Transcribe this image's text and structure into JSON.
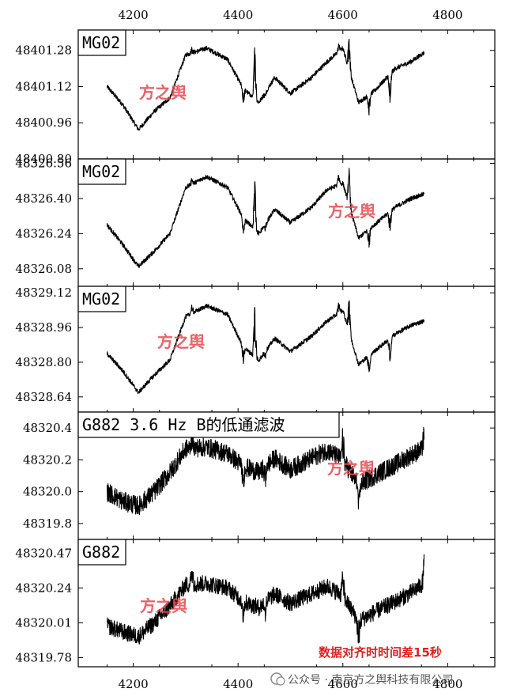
{
  "chart_data": {
    "type": "line",
    "x_ticks": [
      4200,
      4400,
      4600,
      4800
    ],
    "xlim": [
      4095,
      4890
    ],
    "panels": [
      {
        "label": "MG02",
        "ylim": [
          48400.8,
          48401.37
        ],
        "y_ticks": [
          "48401.28",
          "48401.12",
          "48400.96",
          "48400.80"
        ],
        "noise": 0.01,
        "curve": [
          [
            4150,
            48401.12
          ],
          [
            4180,
            48401.04
          ],
          [
            4210,
            48400.93
          ],
          [
            4240,
            48401.01
          ],
          [
            4270,
            48401.07
          ],
          [
            4300,
            48401.26
          ],
          [
            4340,
            48401.29
          ],
          [
            4380,
            48401.24
          ],
          [
            4410,
            48401.11
          ],
          [
            4440,
            48401.05
          ],
          [
            4470,
            48401.16
          ],
          [
            4500,
            48401.09
          ],
          [
            4540,
            48401.16
          ],
          [
            4570,
            48401.23
          ],
          [
            4600,
            48401.29
          ],
          [
            4630,
            48401.05
          ],
          [
            4660,
            48401.1
          ],
          [
            4700,
            48401.2
          ],
          [
            4730,
            48401.23
          ],
          [
            4755,
            48401.27
          ]
        ],
        "spikes": [
          [
            4312,
            48401.29
          ],
          [
            4410,
            48401.05
          ],
          [
            4432,
            48401.3
          ],
          [
            4452,
            48401.08
          ],
          [
            4592,
            48401.3
          ],
          [
            4612,
            48401.34
          ],
          [
            4650,
            48401.0
          ],
          [
            4690,
            48401.05
          ]
        ]
      },
      {
        "label": "MG02",
        "ylim": [
          48326.0,
          48326.58
        ],
        "y_ticks": [
          "48326.56",
          "48326.40",
          "48326.24",
          "48326.08"
        ],
        "noise": 0.01,
        "curve": [
          [
            4150,
            48326.28
          ],
          [
            4180,
            48326.19
          ],
          [
            4210,
            48326.09
          ],
          [
            4240,
            48326.16
          ],
          [
            4270,
            48326.24
          ],
          [
            4300,
            48326.45
          ],
          [
            4340,
            48326.5
          ],
          [
            4380,
            48326.45
          ],
          [
            4410,
            48326.31
          ],
          [
            4440,
            48326.24
          ],
          [
            4470,
            48326.35
          ],
          [
            4500,
            48326.29
          ],
          [
            4540,
            48326.36
          ],
          [
            4570,
            48326.44
          ],
          [
            4600,
            48326.47
          ],
          [
            4630,
            48326.22
          ],
          [
            4660,
            48326.28
          ],
          [
            4700,
            48326.36
          ],
          [
            4730,
            48326.4
          ],
          [
            4755,
            48326.42
          ]
        ],
        "spikes": [
          [
            4312,
            48326.49
          ],
          [
            4410,
            48326.24
          ],
          [
            4432,
            48326.49
          ],
          [
            4452,
            48326.26
          ],
          [
            4592,
            48326.51
          ],
          [
            4612,
            48326.53
          ],
          [
            4650,
            48326.18
          ],
          [
            4690,
            48326.24
          ]
        ]
      },
      {
        "label": "MG02",
        "ylim": [
          48328.57,
          48329.15
        ],
        "y_ticks": [
          "48329.12",
          "48328.96",
          "48328.80",
          "48328.64"
        ],
        "noise": 0.01,
        "curve": [
          [
            4150,
            48328.84
          ],
          [
            4180,
            48328.76
          ],
          [
            4210,
            48328.66
          ],
          [
            4240,
            48328.74
          ],
          [
            4270,
            48328.81
          ],
          [
            4300,
            48329.01
          ],
          [
            4340,
            48329.06
          ],
          [
            4380,
            48329.02
          ],
          [
            4410,
            48328.87
          ],
          [
            4440,
            48328.81
          ],
          [
            4470,
            48328.91
          ],
          [
            4500,
            48328.85
          ],
          [
            4540,
            48328.92
          ],
          [
            4570,
            48328.99
          ],
          [
            4600,
            48329.04
          ],
          [
            4630,
            48328.79
          ],
          [
            4660,
            48328.85
          ],
          [
            4700,
            48328.93
          ],
          [
            4730,
            48328.97
          ],
          [
            4755,
            48328.99
          ]
        ],
        "spikes": [
          [
            4312,
            48329.06
          ],
          [
            4410,
            48328.8
          ],
          [
            4432,
            48329.06
          ],
          [
            4452,
            48328.82
          ],
          [
            4592,
            48329.07
          ],
          [
            4612,
            48329.1
          ],
          [
            4650,
            48328.75
          ],
          [
            4690,
            48328.8
          ]
        ]
      },
      {
        "label": "G882 3.6 Hz B的低通滤波",
        "ylim": [
          48319.7,
          48320.5
        ],
        "y_ticks": [
          "48320.4",
          "48320.2",
          "48320.0",
          "48319.8"
        ],
        "noise": 0.06,
        "curve": [
          [
            4150,
            48320.0
          ],
          [
            4180,
            48319.94
          ],
          [
            4210,
            48319.91
          ],
          [
            4240,
            48320.0
          ],
          [
            4270,
            48320.12
          ],
          [
            4300,
            48320.27
          ],
          [
            4340,
            48320.28
          ],
          [
            4380,
            48320.24
          ],
          [
            4410,
            48320.16
          ],
          [
            4440,
            48320.12
          ],
          [
            4470,
            48320.21
          ],
          [
            4500,
            48320.14
          ],
          [
            4540,
            48320.21
          ],
          [
            4570,
            48320.26
          ],
          [
            4600,
            48320.2
          ],
          [
            4630,
            48320.04
          ],
          [
            4660,
            48320.1
          ],
          [
            4700,
            48320.17
          ],
          [
            4730,
            48320.23
          ],
          [
            4755,
            48320.27
          ]
        ],
        "spikes": [
          [
            4312,
            48320.36
          ],
          [
            4410,
            48320.05
          ],
          [
            4452,
            48320.08
          ],
          [
            4600,
            48320.36
          ],
          [
            4630,
            48319.9
          ],
          [
            4755,
            48320.38
          ]
        ]
      },
      {
        "label": "G882",
        "ylim": [
          48319.72,
          48320.56
        ],
        "y_ticks": [
          "48320.47",
          "48320.24",
          "48320.01",
          "48319.78"
        ],
        "noise": 0.055,
        "curve": [
          [
            4150,
            48319.99
          ],
          [
            4180,
            48319.95
          ],
          [
            4210,
            48319.92
          ],
          [
            4240,
            48320.01
          ],
          [
            4270,
            48320.12
          ],
          [
            4300,
            48320.26
          ],
          [
            4340,
            48320.27
          ],
          [
            4380,
            48320.24
          ],
          [
            4410,
            48320.15
          ],
          [
            4440,
            48320.11
          ],
          [
            4470,
            48320.2
          ],
          [
            4500,
            48320.14
          ],
          [
            4540,
            48320.2
          ],
          [
            4570,
            48320.25
          ],
          [
            4600,
            48320.19
          ],
          [
            4630,
            48320.02
          ],
          [
            4660,
            48320.08
          ],
          [
            4700,
            48320.15
          ],
          [
            4730,
            48320.21
          ],
          [
            4755,
            48320.27
          ]
        ],
        "spikes": [
          [
            4312,
            48320.36
          ],
          [
            4410,
            48320.05
          ],
          [
            4452,
            48320.07
          ],
          [
            4600,
            48320.34
          ],
          [
            4630,
            48319.88
          ],
          [
            4755,
            48320.42
          ]
        ]
      }
    ]
  },
  "watermark": "方之舆",
  "footer_note": "数据对齐时时间差15秒",
  "credit": "公众号 · 南京方之舆科技有限公司",
  "colors": {
    "trace": "#000000",
    "watermark": "#e8474c",
    "note": "#e0201e"
  }
}
